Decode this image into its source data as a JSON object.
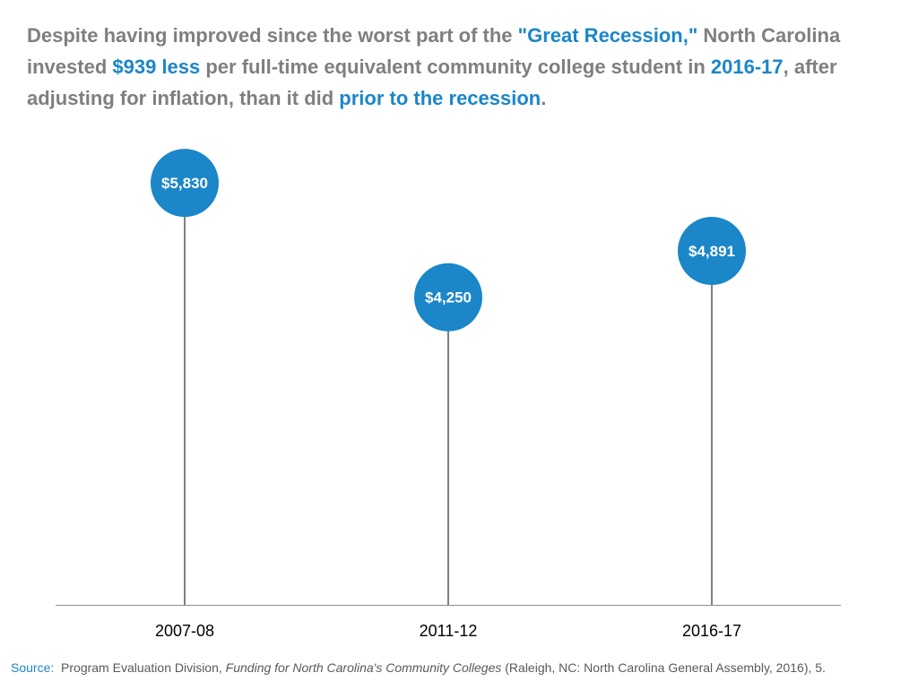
{
  "headline": {
    "t1": "Despite having improved since the worst part of the ",
    "h1": "\"Great Recession,\"",
    "t2": " North Carolina invested ",
    "h2": "$939 less",
    "t3": " per full-time equivalent community college student in ",
    "h3": "2016-17",
    "t4": ", after adjusting for inflation, than it did ",
    "h4": "prior to the recession",
    "t5": "."
  },
  "chart_data": {
    "type": "lollipop",
    "categories": [
      "2007-08",
      "2011-12",
      "2016-17"
    ],
    "values": [
      5830,
      4250,
      4891
    ],
    "value_labels": [
      "$5,830",
      "$4,250",
      "$4,891"
    ],
    "ylim": [
      0,
      6500
    ],
    "grid": false,
    "marker_color": "#1b86c8",
    "stem_color": "#000000"
  },
  "source": {
    "label": "Source:",
    "pre": "  Program Evaluation Division, ",
    "title": "Funding for North Carolina's Community Colleges",
    "post": " (Raleigh, NC: North Carolina General Assembly, 2016), 5."
  }
}
